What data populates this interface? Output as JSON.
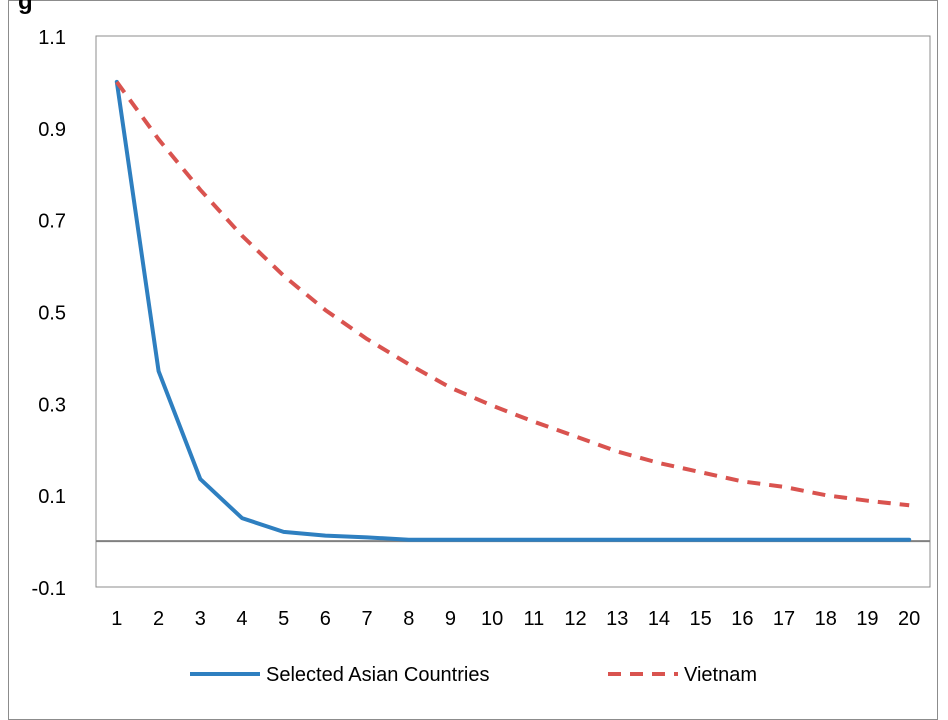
{
  "chart_data": {
    "type": "line",
    "title_fragment": "g",
    "x": [
      1,
      2,
      3,
      4,
      5,
      6,
      7,
      8,
      9,
      10,
      11,
      12,
      13,
      14,
      15,
      16,
      17,
      18,
      19,
      20
    ],
    "ylim": [
      -0.1,
      1.1
    ],
    "yticks": [
      "1.1",
      "0.9",
      "0.7",
      "0.5",
      "0.3",
      "0.1",
      "-0.1"
    ],
    "ytick_values": [
      1.1,
      0.9,
      0.7,
      0.5,
      0.3,
      0.1,
      -0.1
    ],
    "grid": false,
    "zero_line": true,
    "legend_position": "bottom",
    "series": [
      {
        "name": "Selected Asian Countries",
        "color": "#2e7fc0",
        "style": "solid",
        "values": [
          1.0,
          0.37,
          0.135,
          0.05,
          0.02,
          0.012,
          0.008,
          0.003,
          0.003,
          0.003,
          0.003,
          0.003,
          0.003,
          0.003,
          0.003,
          0.003,
          0.003,
          0.003,
          0.003,
          0.003
        ]
      },
      {
        "name": "Vietnam",
        "color": "#d9534f",
        "style": "dashed",
        "values": [
          1.0,
          0.875,
          0.765,
          0.665,
          0.578,
          0.503,
          0.44,
          0.385,
          0.334,
          0.295,
          0.26,
          0.228,
          0.195,
          0.17,
          0.15,
          0.13,
          0.118,
          0.1,
          0.088,
          0.078
        ]
      }
    ]
  }
}
